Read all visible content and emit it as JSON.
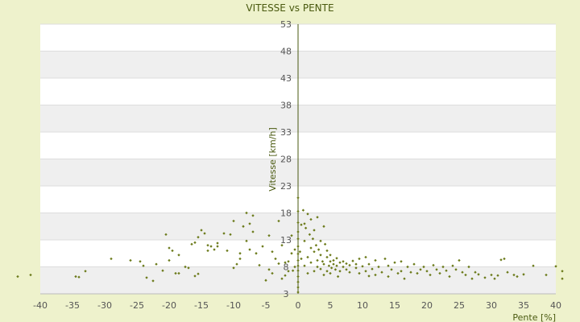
{
  "chart_data": {
    "type": "scatter",
    "title": "VITESSE vs PENTE",
    "xlabel": "Pente [%]",
    "ylabel": "Vitesse [km/h]",
    "xlim": [
      -40,
      40
    ],
    "ylim": [
      3,
      53
    ],
    "xticks": [
      -40,
      -35,
      -30,
      -25,
      -20,
      -15,
      -10,
      -5,
      0,
      5,
      10,
      15,
      20,
      25,
      30,
      35,
      40
    ],
    "yticks": [
      3,
      8,
      13,
      18,
      23,
      28,
      33,
      38,
      43,
      48,
      53
    ],
    "grid": "horizontal alternating bands",
    "colors": {
      "page_background": "#eef2cc",
      "band_light": "#ffffff",
      "band_dark": "#efefef",
      "axis": "#4a5a10",
      "marker": "#6b7a1a"
    },
    "points": [
      [
        -43.5,
        6.2
      ],
      [
        -41.5,
        6.5
      ],
      [
        -34.5,
        6.2
      ],
      [
        -34.0,
        6.1
      ],
      [
        -33.0,
        7.2
      ],
      [
        -29.0,
        9.5
      ],
      [
        -26.0,
        9.2
      ],
      [
        -24.5,
        9.0
      ],
      [
        -24.0,
        8.2
      ],
      [
        -23.5,
        6.0
      ],
      [
        -22.5,
        5.4
      ],
      [
        -22.0,
        8.5
      ],
      [
        -21.0,
        7.3
      ],
      [
        -20.5,
        14.0
      ],
      [
        -20.0,
        9.2
      ],
      [
        -20.0,
        11.5
      ],
      [
        -19.5,
        11.0
      ],
      [
        -19.0,
        6.8
      ],
      [
        -18.5,
        10.2
      ],
      [
        -18.5,
        6.8
      ],
      [
        -17.5,
        8.0
      ],
      [
        -17.0,
        7.8
      ],
      [
        -16.5,
        12.2
      ],
      [
        -16.0,
        12.5
      ],
      [
        -16.0,
        6.3
      ],
      [
        -15.5,
        6.7
      ],
      [
        -15.5,
        13.5
      ],
      [
        -15.0,
        14.8
      ],
      [
        -14.5,
        14.2
      ],
      [
        -14.0,
        11.0
      ],
      [
        -14.0,
        12.0
      ],
      [
        -13.5,
        11.8
      ],
      [
        -13.0,
        11.2
      ],
      [
        -12.5,
        12.4
      ],
      [
        -12.5,
        11.8
      ],
      [
        -11.5,
        14.2
      ],
      [
        -11.0,
        11.0
      ],
      [
        -10.5,
        14.0
      ],
      [
        -10.0,
        16.5
      ],
      [
        -10.0,
        7.8
      ],
      [
        -9.5,
        8.5
      ],
      [
        -9.0,
        9.5
      ],
      [
        -9.0,
        10.5
      ],
      [
        -8.5,
        15.5
      ],
      [
        -8.0,
        12.8
      ],
      [
        -8.0,
        18.0
      ],
      [
        -7.5,
        16.0
      ],
      [
        -7.5,
        11.2
      ],
      [
        -7.0,
        14.5
      ],
      [
        -7.0,
        17.5
      ],
      [
        -6.5,
        10.5
      ],
      [
        -6.0,
        8.3
      ],
      [
        -5.5,
        11.8
      ],
      [
        -5.0,
        5.5
      ],
      [
        -4.5,
        7.5
      ],
      [
        -4.5,
        13.8
      ],
      [
        -4.0,
        6.8
      ],
      [
        -4.0,
        10.8
      ],
      [
        -3.5,
        9.5
      ],
      [
        -3.0,
        8.6
      ],
      [
        -3.0,
        16.5
      ],
      [
        -2.5,
        12.0
      ],
      [
        -2.5,
        5.8
      ],
      [
        -2.0,
        6.4
      ],
      [
        -2.0,
        8.8
      ],
      [
        -1.5,
        7.2
      ],
      [
        -1.5,
        9.0
      ],
      [
        -1.0,
        13.8
      ],
      [
        -1.0,
        10.5
      ],
      [
        -0.8,
        7.3
      ],
      [
        -0.5,
        11.2
      ],
      [
        -0.5,
        8.0
      ],
      [
        0.0,
        3.3
      ],
      [
        0.0,
        4.2
      ],
      [
        0.0,
        5.2
      ],
      [
        0.0,
        6.2
      ],
      [
        0.0,
        7.3
      ],
      [
        0.0,
        8.2
      ],
      [
        0.0,
        9.2
      ],
      [
        0.0,
        10.4
      ],
      [
        0.0,
        11.8
      ],
      [
        0.0,
        13.2
      ],
      [
        0.0,
        14.5
      ],
      [
        0.0,
        16.2
      ],
      [
        0.0,
        18.3
      ],
      [
        0.0,
        20.8
      ],
      [
        0.3,
        10.8
      ],
      [
        0.5,
        15.8
      ],
      [
        0.5,
        9.5
      ],
      [
        0.8,
        18.5
      ],
      [
        1.0,
        16.0
      ],
      [
        1.0,
        12.8
      ],
      [
        1.0,
        8.2
      ],
      [
        1.2,
        15.2
      ],
      [
        1.5,
        17.8
      ],
      [
        1.5,
        9.8
      ],
      [
        1.5,
        6.8
      ],
      [
        1.8,
        14.0
      ],
      [
        2.0,
        11.5
      ],
      [
        2.0,
        8.8
      ],
      [
        2.0,
        16.8
      ],
      [
        2.3,
        13.2
      ],
      [
        2.5,
        10.8
      ],
      [
        2.5,
        7.2
      ],
      [
        2.5,
        14.8
      ],
      [
        2.8,
        12.0
      ],
      [
        3.0,
        9.2
      ],
      [
        3.0,
        8.0
      ],
      [
        3.0,
        17.2
      ],
      [
        3.2,
        11.2
      ],
      [
        3.5,
        12.8
      ],
      [
        3.5,
        7.6
      ],
      [
        3.5,
        10.2
      ],
      [
        3.8,
        9.0
      ],
      [
        4.0,
        15.5
      ],
      [
        4.0,
        8.5
      ],
      [
        4.0,
        6.5
      ],
      [
        4.2,
        12.2
      ],
      [
        4.5,
        11.0
      ],
      [
        4.5,
        9.8
      ],
      [
        4.5,
        7.2
      ],
      [
        4.8,
        8.2
      ],
      [
        5.0,
        10.2
      ],
      [
        5.0,
        9.0
      ],
      [
        5.0,
        6.8
      ],
      [
        5.2,
        7.8
      ],
      [
        5.5,
        9.2
      ],
      [
        5.5,
        8.5
      ],
      [
        5.8,
        7.5
      ],
      [
        6.0,
        8.2
      ],
      [
        6.0,
        9.6
      ],
      [
        6.2,
        6.2
      ],
      [
        6.5,
        8.8
      ],
      [
        6.5,
        7.2
      ],
      [
        7.0,
        8.0
      ],
      [
        7.0,
        9.0
      ],
      [
        7.5,
        7.5
      ],
      [
        7.5,
        8.6
      ],
      [
        8.0,
        8.3
      ],
      [
        8.0,
        7.0
      ],
      [
        8.5,
        9.1
      ],
      [
        9.0,
        7.8
      ],
      [
        9.0,
        8.5
      ],
      [
        9.5,
        6.8
      ],
      [
        9.5,
        9.5
      ],
      [
        10.0,
        8.1
      ],
      [
        10.5,
        7.2
      ],
      [
        10.5,
        9.8
      ],
      [
        11.0,
        6.3
      ],
      [
        11.0,
        8.5
      ],
      [
        11.5,
        7.6
      ],
      [
        12.0,
        9.2
      ],
      [
        12.0,
        6.5
      ],
      [
        12.5,
        8.0
      ],
      [
        13.0,
        7.0
      ],
      [
        13.5,
        9.5
      ],
      [
        14.0,
        6.2
      ],
      [
        14.0,
        8.2
      ],
      [
        14.5,
        7.5
      ],
      [
        15.0,
        8.8
      ],
      [
        15.5,
        6.8
      ],
      [
        16.0,
        7.2
      ],
      [
        16.0,
        9.0
      ],
      [
        16.5,
        5.8
      ],
      [
        17.0,
        8.0
      ],
      [
        17.5,
        7.0
      ],
      [
        18.0,
        8.5
      ],
      [
        18.5,
        6.8
      ],
      [
        19.0,
        7.5
      ],
      [
        19.5,
        8.0
      ],
      [
        20.0,
        7.2
      ],
      [
        20.5,
        6.5
      ],
      [
        21.0,
        8.3
      ],
      [
        21.5,
        7.5
      ],
      [
        22.0,
        6.8
      ],
      [
        22.5,
        8.0
      ],
      [
        23.0,
        7.3
      ],
      [
        23.5,
        6.2
      ],
      [
        24.0,
        8.2
      ],
      [
        24.5,
        7.5
      ],
      [
        25.0,
        9.2
      ],
      [
        25.5,
        7.0
      ],
      [
        26.0,
        6.5
      ],
      [
        26.5,
        8.0
      ],
      [
        27.0,
        5.8
      ],
      [
        27.5,
        7.0
      ],
      [
        28.0,
        6.6
      ],
      [
        29.0,
        6.0
      ],
      [
        30.0,
        6.5
      ],
      [
        30.5,
        5.8
      ],
      [
        31.0,
        6.4
      ],
      [
        31.5,
        9.3
      ],
      [
        32.0,
        9.5
      ],
      [
        32.5,
        7.0
      ],
      [
        33.5,
        6.5
      ],
      [
        34.0,
        6.2
      ],
      [
        35.0,
        6.6
      ],
      [
        36.5,
        8.2
      ],
      [
        38.5,
        6.5
      ],
      [
        40.0,
        8.1
      ],
      [
        41.0,
        7.2
      ],
      [
        41.0,
        5.8
      ]
    ]
  }
}
